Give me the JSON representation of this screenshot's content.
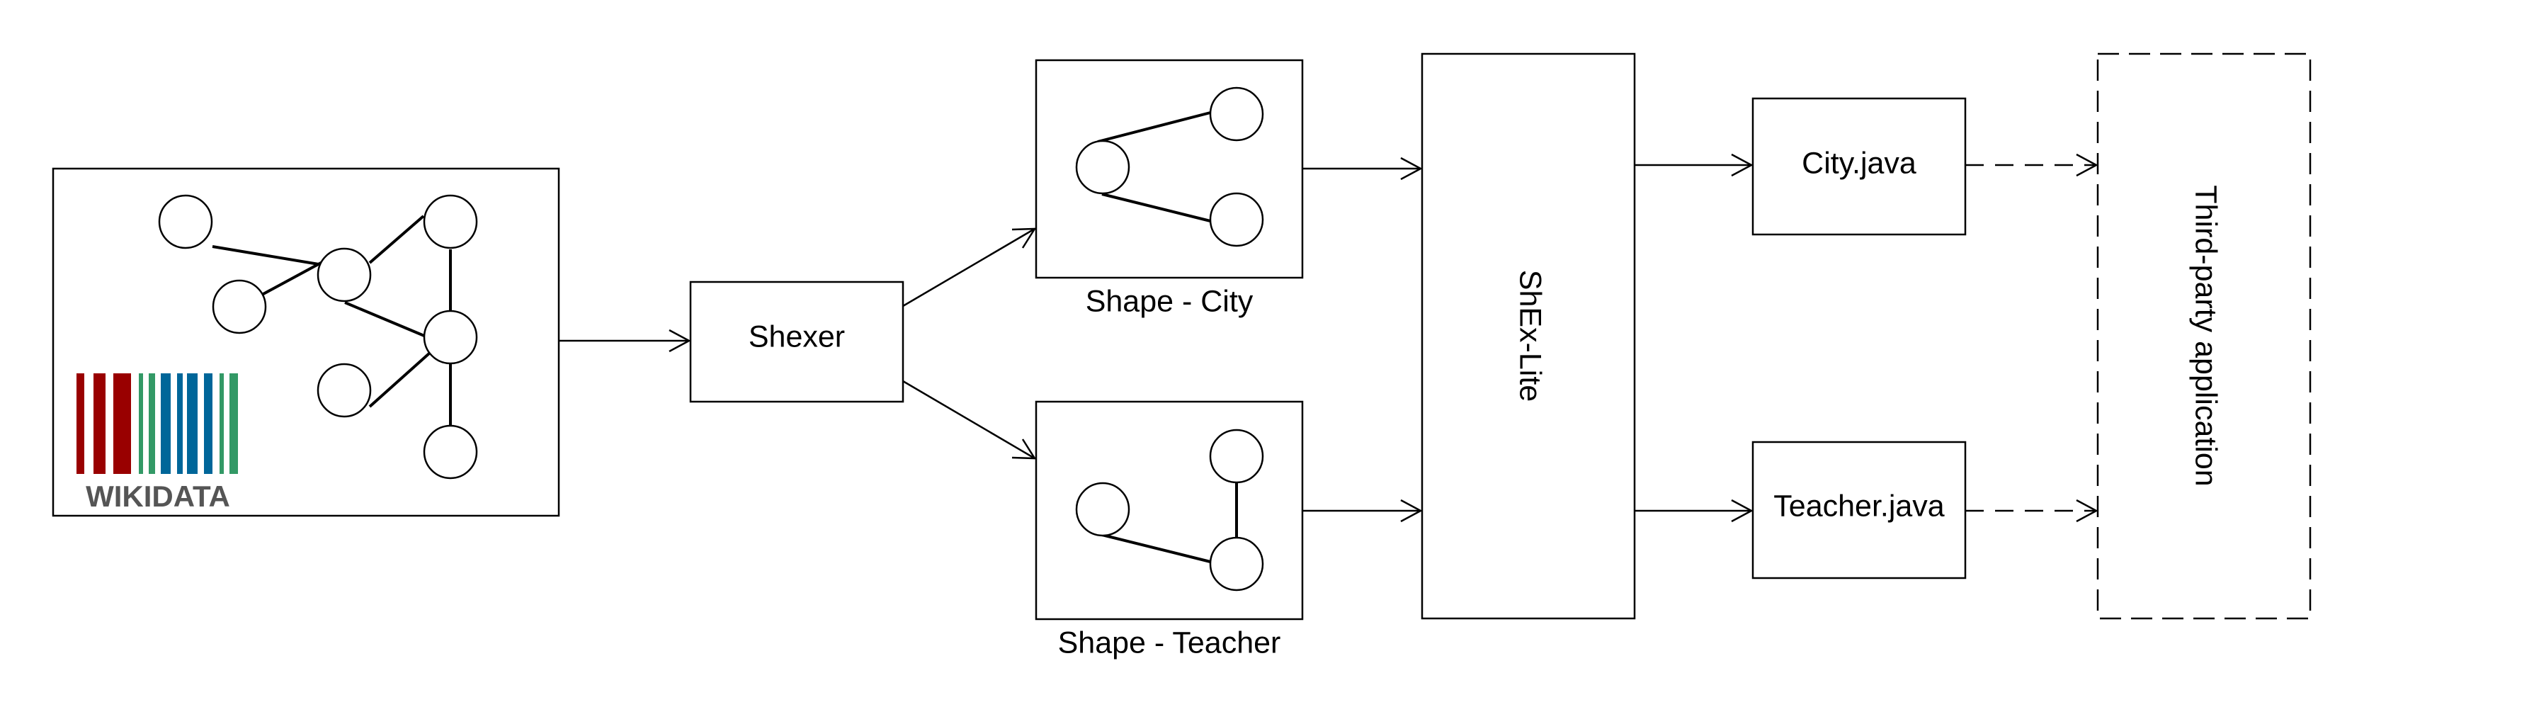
{
  "colors": {
    "stroke": "#000000",
    "background": "#ffffff",
    "wikidata_red": "#990000",
    "wikidata_green": "#339966",
    "wikidata_blue": "#006699",
    "wikidata_text": "#555555"
  },
  "source": {
    "logo_text": "WIKIDATA"
  },
  "tool": {
    "label": "Shexer"
  },
  "shapes": [
    {
      "id": "city",
      "label": "Shape - City"
    },
    {
      "id": "teacher",
      "label": "Shape - Teacher"
    }
  ],
  "generator": {
    "label": "ShEx-Lite"
  },
  "outputs": [
    {
      "id": "city",
      "label": "City.java"
    },
    {
      "id": "teacher",
      "label": "Teacher.java"
    }
  ],
  "consumer": {
    "label": "Third-party application"
  }
}
